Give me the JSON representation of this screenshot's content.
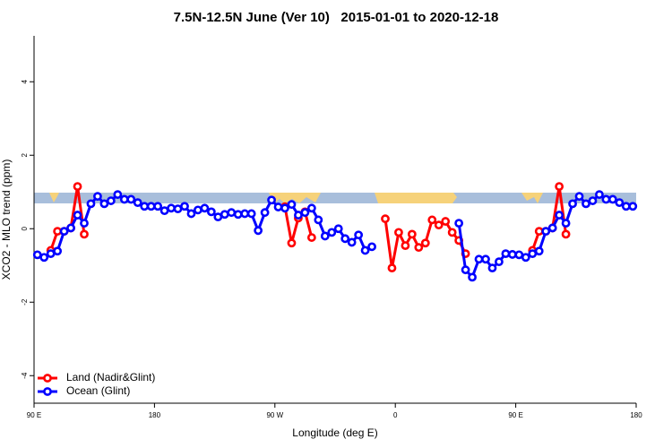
{
  "chart_data": {
    "type": "line",
    "title": "7.5N-12.5N June (Ver 10)   2015-01-01 to 2020-12-18",
    "x_label": "Longitude (deg E)",
    "y_label": "XCO2 - MLO trend (ppm)",
    "xlim": [
      90,
      540
    ],
    "xticks": [
      {
        "value": 90,
        "label": "90 E"
      },
      180,
      {
        "value": 270,
        "label": "90 W"
      },
      {
        "value": 360,
        "label": "0"
      },
      {
        "value": 450,
        "label": "90 E"
      },
      {
        "value": 540,
        "label": "180"
      }
    ],
    "ylim": [
      -4.75,
      5.25
    ],
    "yticks": [
      -4,
      -2,
      0,
      2,
      4
    ],
    "legend": "bottom-left",
    "x": [
      92.5,
      97.5,
      102.5,
      107.5,
      112.5,
      117.5,
      122.5,
      127.5,
      132.5,
      137.5,
      142.5,
      147.5,
      152.5,
      157.5,
      162.5,
      167.5,
      172.5,
      177.5,
      182.5,
      187.5,
      192.5,
      197.5,
      202.5,
      207.5,
      212.5,
      217.5,
      222.5,
      227.5,
      232.5,
      237.5,
      242.5,
      247.5,
      252.5,
      257.5,
      262.5,
      267.5,
      272.5,
      277.5,
      282.5,
      287.5,
      292.5,
      297.5,
      302.5,
      307.5,
      312.5,
      317.5,
      322.5,
      327.5,
      332.5,
      337.5,
      342.5,
      347.5,
      352.5,
      357.5,
      362.5,
      367.5,
      372.5,
      377.5,
      382.5,
      387.5,
      392.5,
      397.5,
      402.5,
      407.5,
      412.5,
      417.5,
      422.5,
      427.5,
      432.5,
      437.5,
      442.5,
      447.5,
      452.5,
      457.5,
      462.5,
      467.5,
      472.5,
      477.5,
      482.5,
      487.5,
      492.5,
      497.5,
      502.5,
      507.5,
      512.5,
      517.5,
      522.5,
      527.5,
      532.5,
      537.5
    ],
    "series": [
      {
        "name": "Land (Nadir&Glint)",
        "color": "#ff0000",
        "values": [
          null,
          null,
          -0.59,
          -0.07,
          -0.07,
          0.02,
          1.15,
          -0.15,
          null,
          null,
          null,
          null,
          null,
          null,
          null,
          null,
          null,
          null,
          null,
          null,
          null,
          null,
          null,
          null,
          null,
          null,
          null,
          null,
          null,
          null,
          null,
          null,
          null,
          null,
          null,
          null,
          null,
          0.6,
          -0.39,
          0.29,
          0.46,
          -0.24,
          null,
          null,
          null,
          null,
          null,
          null,
          null,
          null,
          null,
          null,
          0.27,
          -1.07,
          -0.1,
          -0.46,
          -0.15,
          -0.51,
          -0.39,
          0.24,
          0.1,
          0.2,
          -0.1,
          -0.32,
          -0.68,
          null,
          null,
          null,
          null,
          null,
          null,
          null,
          null,
          null,
          -0.59,
          -0.07,
          -0.07,
          0.02,
          1.15,
          -0.15,
          null,
          null,
          null,
          null,
          null,
          null,
          null,
          null,
          null,
          null
        ]
      },
      {
        "name": "Ocean (Glint)",
        "color": "#0000ff",
        "values": [
          -0.71,
          -0.78,
          -0.68,
          -0.61,
          -0.07,
          0.02,
          0.37,
          0.15,
          0.68,
          0.88,
          0.68,
          0.76,
          0.93,
          0.8,
          0.8,
          0.71,
          0.61,
          0.61,
          0.61,
          0.49,
          0.56,
          0.54,
          0.61,
          0.41,
          0.51,
          0.56,
          0.46,
          0.32,
          0.39,
          0.44,
          0.39,
          0.41,
          0.41,
          -0.05,
          0.44,
          0.78,
          0.59,
          0.56,
          0.66,
          0.37,
          0.44,
          0.56,
          0.24,
          -0.2,
          -0.1,
          0,
          -0.27,
          -0.37,
          -0.17,
          -0.59,
          -0.49,
          null,
          null,
          null,
          null,
          null,
          null,
          null,
          null,
          null,
          null,
          null,
          null,
          0.15,
          -1.12,
          -1.32,
          -0.83,
          -0.83,
          -1.07,
          -0.9,
          -0.68,
          -0.7,
          -0.71,
          -0.78,
          -0.68,
          -0.61,
          -0.07,
          0.02,
          0.37,
          0.15,
          0.68,
          0.88,
          0.68,
          0.76,
          0.93,
          0.8,
          0.8,
          0.71,
          0.61,
          0.61
        ]
      }
    ]
  }
}
